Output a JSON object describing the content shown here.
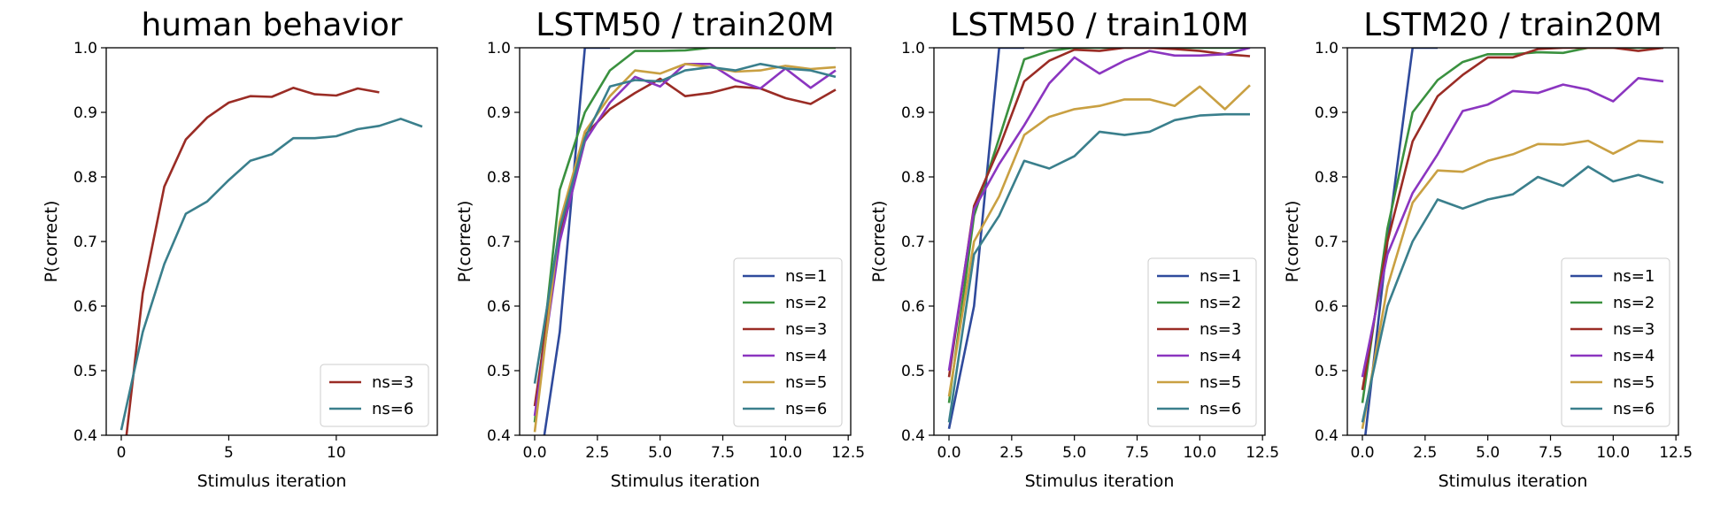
{
  "colors": {
    "ns=1": "#2f4a9c",
    "ns=2": "#3a913f",
    "ns=3": "#9a2c25",
    "ns=4": "#8b35c0",
    "ns=5": "#c9a042",
    "ns=6": "#3a7f8c"
  },
  "chart_data": [
    {
      "type": "line",
      "title": "human behavior",
      "xlabel": "Stimulus iteration",
      "ylabel": "P(correct)",
      "xlim": [
        -0.7,
        14.7
      ],
      "ylim": [
        0.4,
        1.0
      ],
      "xticks": [
        0,
        5,
        10
      ],
      "xtick_labels": [
        "0",
        "5",
        "10"
      ],
      "yticks": [
        0.4,
        0.5,
        0.6,
        0.7,
        0.8,
        0.9,
        1.0
      ],
      "ytick_labels": [
        "0.4",
        "0.5",
        "0.6",
        "0.7",
        "0.8",
        "0.9",
        "1.0"
      ],
      "legend_position": "lower right",
      "series": [
        {
          "name": "ns=3",
          "x": [
            0,
            1,
            2,
            3,
            4,
            5,
            6,
            7,
            8,
            9,
            10,
            11,
            12
          ],
          "values": [
            0.33,
            0.62,
            0.785,
            0.858,
            0.892,
            0.915,
            0.925,
            0.924,
            0.938,
            0.928,
            0.926,
            0.937,
            0.931
          ]
        },
        {
          "name": "ns=6",
          "x": [
            0,
            1,
            2,
            3,
            4,
            5,
            6,
            7,
            8,
            9,
            10,
            11,
            12,
            13,
            14
          ],
          "values": [
            0.408,
            0.56,
            0.665,
            0.743,
            0.762,
            0.795,
            0.825,
            0.835,
            0.86,
            0.86,
            0.863,
            0.874,
            0.879,
            0.89,
            0.878
          ]
        }
      ]
    },
    {
      "type": "line",
      "title": "LSTM50 / train20M",
      "xlabel": "Stimulus iteration",
      "ylabel": "P(correct)",
      "xlim": [
        -0.6,
        12.6
      ],
      "ylim": [
        0.4,
        1.0
      ],
      "xticks": [
        0,
        2.5,
        5,
        7.5,
        10,
        12.5
      ],
      "xtick_labels": [
        "0.0",
        "2.5",
        "5.0",
        "7.5",
        "10.0",
        "12.5"
      ],
      "yticks": [
        0.4,
        0.5,
        0.6,
        0.7,
        0.8,
        0.9,
        1.0
      ],
      "ytick_labels": [
        "0.4",
        "0.5",
        "0.6",
        "0.7",
        "0.8",
        "0.9",
        "1.0"
      ],
      "legend_position": "lower right",
      "series": [
        {
          "name": "ns=1",
          "x": [
            0,
            1,
            2,
            3
          ],
          "values": [
            0.3,
            0.56,
            1.0,
            1.0
          ]
        },
        {
          "name": "ns=2",
          "x": [
            0,
            1,
            2,
            3,
            4,
            5,
            6,
            7,
            8,
            9,
            10,
            11,
            12
          ],
          "values": [
            0.42,
            0.78,
            0.9,
            0.965,
            0.995,
            0.995,
            0.996,
            1.0,
            1.0,
            1.0,
            1.0,
            1.0,
            1.0
          ]
        },
        {
          "name": "ns=3",
          "x": [
            0,
            1,
            2,
            3,
            4,
            5,
            6,
            7,
            8,
            9,
            10,
            11,
            12
          ],
          "values": [
            0.445,
            0.71,
            0.865,
            0.905,
            0.93,
            0.952,
            0.925,
            0.93,
            0.94,
            0.937,
            0.922,
            0.913,
            0.935
          ]
        },
        {
          "name": "ns=4",
          "x": [
            0,
            1,
            2,
            3,
            4,
            5,
            6,
            7,
            8,
            9,
            10,
            11,
            12
          ],
          "values": [
            0.43,
            0.7,
            0.855,
            0.915,
            0.955,
            0.94,
            0.975,
            0.975,
            0.95,
            0.937,
            0.968,
            0.938,
            0.965
          ]
        },
        {
          "name": "ns=5",
          "x": [
            0,
            1,
            2,
            3,
            4,
            5,
            6,
            7,
            8,
            9,
            10,
            11,
            12
          ],
          "values": [
            0.405,
            0.73,
            0.87,
            0.925,
            0.965,
            0.96,
            0.975,
            0.97,
            0.963,
            0.965,
            0.972,
            0.967,
            0.97
          ]
        },
        {
          "name": "ns=6",
          "x": [
            0,
            1,
            2,
            3,
            4,
            5,
            6,
            7,
            8,
            9,
            10,
            11,
            12
          ],
          "values": [
            0.48,
            0.72,
            0.86,
            0.94,
            0.95,
            0.948,
            0.965,
            0.97,
            0.965,
            0.975,
            0.968,
            0.965,
            0.955
          ]
        }
      ]
    },
    {
      "type": "line",
      "title": "LSTM50 / train10M",
      "xlabel": "Stimulus iteration",
      "ylabel": "P(correct)",
      "xlim": [
        -0.6,
        12.6
      ],
      "ylim": [
        0.4,
        1.0
      ],
      "xticks": [
        0,
        2.5,
        5,
        7.5,
        10,
        12.5
      ],
      "xtick_labels": [
        "0.0",
        "2.5",
        "5.0",
        "7.5",
        "10.0",
        "12.5"
      ],
      "yticks": [
        0.4,
        0.5,
        0.6,
        0.7,
        0.8,
        0.9,
        1.0
      ],
      "ytick_labels": [
        "0.4",
        "0.5",
        "0.6",
        "0.7",
        "0.8",
        "0.9",
        "1.0"
      ],
      "legend_position": "lower right",
      "series": [
        {
          "name": "ns=1",
          "x": [
            0,
            1,
            2,
            3
          ],
          "values": [
            0.41,
            0.6,
            1.0,
            1.0
          ]
        },
        {
          "name": "ns=2",
          "x": [
            0,
            1,
            2,
            3,
            4,
            5,
            6,
            7,
            8,
            9,
            10,
            11,
            12
          ],
          "values": [
            0.45,
            0.74,
            0.86,
            0.982,
            0.995,
            1.0,
            1.0,
            1.0,
            1.0,
            1.0,
            1.0,
            1.0,
            1.0
          ]
        },
        {
          "name": "ns=3",
          "x": [
            0,
            1,
            2,
            3,
            4,
            5,
            6,
            7,
            8,
            9,
            10,
            11,
            12
          ],
          "values": [
            0.49,
            0.755,
            0.845,
            0.948,
            0.98,
            0.997,
            0.995,
            1.0,
            1.0,
            0.998,
            0.995,
            0.99,
            0.987
          ]
        },
        {
          "name": "ns=4",
          "x": [
            0,
            1,
            2,
            3,
            4,
            5,
            6,
            7,
            8,
            9,
            10,
            11,
            12
          ],
          "values": [
            0.5,
            0.75,
            0.82,
            0.88,
            0.945,
            0.985,
            0.96,
            0.98,
            0.995,
            0.988,
            0.988,
            0.99,
            1.0
          ]
        },
        {
          "name": "ns=5",
          "x": [
            0,
            1,
            2,
            3,
            4,
            5,
            6,
            7,
            8,
            9,
            10,
            11,
            12
          ],
          "values": [
            0.46,
            0.7,
            0.77,
            0.865,
            0.893,
            0.905,
            0.91,
            0.92,
            0.92,
            0.91,
            0.94,
            0.905,
            0.942
          ]
        },
        {
          "name": "ns=6",
          "x": [
            0,
            1,
            2,
            3,
            4,
            5,
            6,
            7,
            8,
            9,
            10,
            11,
            12
          ],
          "values": [
            0.42,
            0.68,
            0.74,
            0.825,
            0.813,
            0.832,
            0.87,
            0.865,
            0.87,
            0.888,
            0.895,
            0.897,
            0.897
          ]
        }
      ]
    },
    {
      "type": "line",
      "title": "LSTM20 / train20M",
      "xlabel": "Stimulus iteration",
      "ylabel": "P(correct)",
      "xlim": [
        -0.6,
        12.6
      ],
      "ylim": [
        0.4,
        1.0
      ],
      "xticks": [
        0,
        2.5,
        5,
        7.5,
        10,
        12.5
      ],
      "xtick_labels": [
        "0.0",
        "2.5",
        "5.0",
        "7.5",
        "10.0",
        "12.5"
      ],
      "yticks": [
        0.4,
        0.5,
        0.6,
        0.7,
        0.8,
        0.9,
        1.0
      ],
      "ytick_labels": [
        "0.4",
        "0.5",
        "0.6",
        "0.7",
        "0.8",
        "0.9",
        "1.0"
      ],
      "legend_position": "lower right",
      "series": [
        {
          "name": "ns=1",
          "x": [
            0,
            1,
            2,
            3
          ],
          "values": [
            0.36,
            0.7,
            1.0,
            1.0
          ]
        },
        {
          "name": "ns=2",
          "x": [
            0,
            1,
            2,
            3,
            4,
            5,
            6,
            7,
            8,
            9,
            10,
            11,
            12
          ],
          "values": [
            0.45,
            0.72,
            0.9,
            0.95,
            0.978,
            0.99,
            0.99,
            0.993,
            0.992,
            1.0,
            1.0,
            1.0,
            1.0
          ]
        },
        {
          "name": "ns=3",
          "x": [
            0,
            1,
            2,
            3,
            4,
            5,
            6,
            7,
            8,
            9,
            10,
            11,
            12
          ],
          "values": [
            0.47,
            0.7,
            0.855,
            0.925,
            0.958,
            0.985,
            0.985,
            0.998,
            1.0,
            1.0,
            1.0,
            0.995,
            1.0
          ]
        },
        {
          "name": "ns=4",
          "x": [
            0,
            1,
            2,
            3,
            4,
            5,
            6,
            7,
            8,
            9,
            10,
            11,
            12
          ],
          "values": [
            0.49,
            0.68,
            0.775,
            0.835,
            0.902,
            0.912,
            0.933,
            0.93,
            0.943,
            0.935,
            0.917,
            0.953,
            0.948
          ]
        },
        {
          "name": "ns=5",
          "x": [
            0,
            1,
            2,
            3,
            4,
            5,
            6,
            7,
            8,
            9,
            10,
            11,
            12
          ],
          "values": [
            0.41,
            0.63,
            0.76,
            0.81,
            0.808,
            0.825,
            0.835,
            0.851,
            0.85,
            0.856,
            0.836,
            0.856,
            0.854
          ]
        },
        {
          "name": "ns=6",
          "x": [
            0,
            1,
            2,
            3,
            4,
            5,
            6,
            7,
            8,
            9,
            10,
            11,
            12
          ],
          "values": [
            0.42,
            0.6,
            0.7,
            0.765,
            0.751,
            0.765,
            0.773,
            0.8,
            0.786,
            0.816,
            0.793,
            0.803,
            0.791
          ]
        }
      ]
    }
  ]
}
